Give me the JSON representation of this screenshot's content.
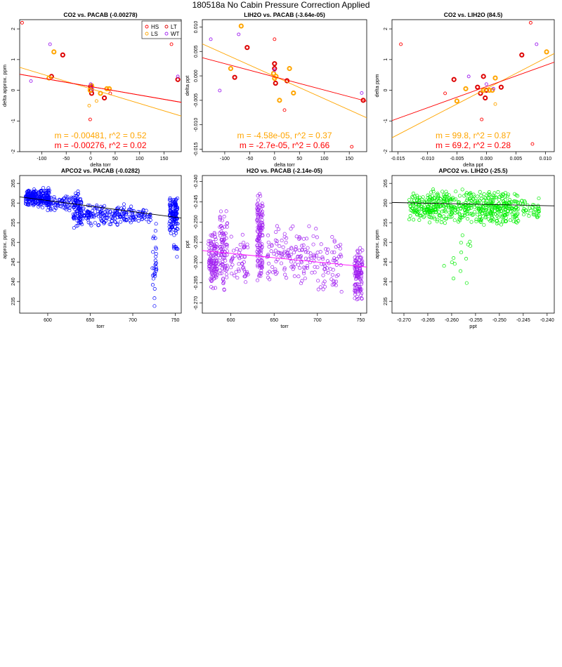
{
  "figure": {
    "title": "180518a   No Cabin Pressure Correction Applied"
  },
  "colors": {
    "HS": "#ff0000",
    "LS": "#ffa500",
    "LT": "#dd0000",
    "WT": "#a020f0",
    "fit_orange": "#ffa500",
    "fit_red": "#ff0000",
    "apco2_blue": "#0000ff",
    "h2o_purple": "#a020f0",
    "apco2_green": "#00ee00",
    "fit_black": "#000000"
  },
  "legend": {
    "entries": [
      {
        "label": "HS",
        "color": "#ff0000"
      },
      {
        "label": "LT",
        "color": "#dd0000"
      },
      {
        "label": "LS",
        "color": "#ffa500"
      },
      {
        "label": "WT",
        "color": "#a020f0"
      }
    ]
  },
  "chart_data": [
    {
      "id": "co2-vs-pacab",
      "type": "scatter",
      "title": "CO2 vs. PACAB (-0.00278)",
      "xlabel": "delta torr",
      "ylabel": "delta approx. ppm",
      "xlim": [
        -145,
        185
      ],
      "ylim": [
        -2,
        2.3
      ],
      "xticks": [
        -100,
        -50,
        0,
        50,
        100,
        150
      ],
      "yticks": [
        -2,
        -1,
        0,
        1,
        2
      ],
      "legend": true,
      "annotations": [
        {
          "text": "m = -0.00481, r^2 = 0.52",
          "color": "#ffa500"
        },
        {
          "text": "m = -0.00276, r^2 = 0.02",
          "color": "#ff0000"
        }
      ],
      "fits": [
        {
          "name": "LS fit",
          "color": "#ffa500",
          "slope": -0.00481,
          "intercept": 0.05
        },
        {
          "name": "HS/LT fit",
          "color": "#ff0000",
          "slope": -0.00276,
          "intercept": 0.12
        },
        {
          "name": "overall",
          "color": "#ff0000",
          "slope": -0.00278,
          "intercept": 0.12
        }
      ],
      "series": [
        {
          "name": "HS",
          "color": "#ff0000",
          "bold": false,
          "x": [
            -140,
            165,
            -1,
            2,
            40
          ],
          "y": [
            2.2,
            1.5,
            -0.95,
            0.1,
            -0.1
          ]
        },
        {
          "name": "LT",
          "color": "#dd0000",
          "bold": true,
          "x": [
            -57,
            -80,
            178,
            0,
            1,
            2,
            28
          ],
          "y": [
            1.15,
            0.45,
            0.35,
            0.12,
            0.0,
            -0.1,
            -0.25
          ]
        },
        {
          "name": "LS",
          "color": "#ffa500",
          "bold": true,
          "x": [
            -75,
            -85,
            2,
            20,
            38,
            33,
            -1
          ],
          "y": [
            1.25,
            0.4,
            0.15,
            -0.1,
            0.05,
            0.05,
            0.0
          ]
        },
        {
          "name": "LS-light",
          "color": "#ffa500",
          "bold": false,
          "x": [
            12,
            -3
          ],
          "y": [
            -0.35,
            -0.5
          ]
        },
        {
          "name": "WT",
          "color": "#a020f0",
          "bold": false,
          "x": [
            -83,
            -122,
            178,
            0,
            3
          ],
          "y": [
            1.5,
            0.3,
            0.45,
            0.2,
            0.05
          ]
        }
      ]
    },
    {
      "id": "lih2o-vs-pacab",
      "type": "scatter",
      "title": "LIH2O vs. PACAB (-3.64e-05)",
      "xlabel": "delta torr",
      "ylabel": "delta ppt",
      "xlim": [
        -145,
        185
      ],
      "ylim": [
        -0.0155,
        0.0115
      ],
      "xticks": [
        -100,
        -50,
        0,
        50,
        100,
        150
      ],
      "yticks": [
        -0.015,
        -0.01,
        -0.005,
        0,
        0.005,
        0.01
      ],
      "ytick_labels": [
        "-0.015",
        "-0.010",
        "-0.005",
        "0.000",
        "0.005",
        "0.010"
      ],
      "legend": false,
      "annotations": [
        {
          "text": "m = -4.58e-05, r^2 = 0.37",
          "color": "#ffa500"
        },
        {
          "text": "m = -2.7e-05, r^2 = 0.66",
          "color": "#ff0000"
        }
      ],
      "fits": [
        {
          "name": "LS fit",
          "color": "#ffa500",
          "slope": -4.58e-05,
          "intercept": -0.0001
        },
        {
          "name": "HS/LT fit",
          "color": "#ff0000",
          "slope": -2.7e-05,
          "intercept": -0.0002
        }
      ],
      "series": [
        {
          "name": "HS",
          "color": "#ff0000",
          "bold": false,
          "x": [
            0,
            155,
            20
          ],
          "y": [
            0.0075,
            -0.0145,
            -0.007
          ]
        },
        {
          "name": "LT",
          "color": "#dd0000",
          "bold": true,
          "x": [
            -55,
            -80,
            0,
            0,
            2,
            178,
            25
          ],
          "y": [
            0.0058,
            -0.0003,
            0.0025,
            0.0015,
            -0.0015,
            -0.005,
            -0.001
          ]
        },
        {
          "name": "LS",
          "color": "#ffa500",
          "bold": true,
          "x": [
            -67,
            -88,
            -2,
            0,
            3,
            30,
            10,
            38
          ],
          "y": [
            0.0102,
            0.0015,
            0.0005,
            -0.0005,
            -0.0001,
            0.0015,
            -0.005,
            -0.0035
          ]
        },
        {
          "name": "WT",
          "color": "#a020f0",
          "bold": false,
          "x": [
            -128,
            -72,
            -110,
            175,
            0
          ],
          "y": [
            0.0075,
            0.0085,
            -0.003,
            -0.0035,
            0.0012
          ]
        }
      ]
    },
    {
      "id": "co2-vs-lih2o",
      "type": "scatter",
      "title": "CO2 vs. LIH2O (84.5)",
      "xlabel": "delta ppt",
      "ylabel": "delta ppm",
      "xlim": [
        -0.016,
        0.0115
      ],
      "ylim": [
        -2,
        2.3
      ],
      "xticks": [
        -0.015,
        -0.01,
        -0.005,
        0,
        0.005,
        0.01
      ],
      "xtick_labels": [
        "-0.015",
        "-0.010",
        "-0.005",
        "0.000",
        "0.005",
        "0.010"
      ],
      "yticks": [
        -2,
        -1,
        0,
        1,
        2
      ],
      "legend": false,
      "annotations": [
        {
          "text": "m = 99.8, r^2 = 0.87",
          "color": "#ffa500"
        },
        {
          "text": "m = 69.2, r^2 = 0.28",
          "color": "#ff0000"
        }
      ],
      "fits": [
        {
          "name": "LS fit",
          "color": "#ffa500",
          "slope": 99.8,
          "intercept": 0.05
        },
        {
          "name": "HS/LT fit",
          "color": "#ff0000",
          "slope": 69.2,
          "intercept": 0.12
        }
      ],
      "series": [
        {
          "name": "HS",
          "color": "#ff0000",
          "bold": false,
          "x": [
            -0.0145,
            0.0075,
            0.0078,
            -0.007,
            -0.0008
          ],
          "y": [
            1.5,
            2.2,
            -1.75,
            -0.1,
            -0.95
          ]
        },
        {
          "name": "LT",
          "color": "#dd0000",
          "bold": true,
          "x": [
            0.006,
            -0.0055,
            0.0025,
            -0.0015,
            -0.001,
            -0.0005,
            0.0,
            -0.0002
          ],
          "y": [
            1.15,
            0.35,
            0.1,
            0.1,
            -0.1,
            0.45,
            0.0,
            -0.25
          ]
        },
        {
          "name": "LS",
          "color": "#ffa500",
          "bold": true,
          "x": [
            0.0102,
            -0.0035,
            0.0015,
            -0.005,
            0.0005,
            -0.0005,
            0.001
          ],
          "y": [
            1.25,
            0.05,
            0.4,
            -0.35,
            0.0,
            0.0,
            0.0
          ]
        },
        {
          "name": "LS-light",
          "color": "#ffa500",
          "bold": false,
          "x": [
            0.0015
          ],
          "y": [
            -0.45
          ]
        },
        {
          "name": "WT",
          "color": "#a020f0",
          "bold": false,
          "x": [
            0.0085,
            -0.003,
            0.0,
            0.0012
          ],
          "y": [
            1.5,
            0.45,
            0.2,
            0.05
          ]
        }
      ]
    },
    {
      "id": "apco2-vs-pacab",
      "type": "scatter",
      "title": "APCO2 vs. PACAB (-0.0282)",
      "xlabel": "torr",
      "ylabel": "approx. ppm",
      "xlim": [
        567,
        757
      ],
      "ylim": [
        232,
        267
      ],
      "xticks": [
        600,
        650,
        700,
        750
      ],
      "yticks": [
        235,
        240,
        245,
        250,
        255,
        260,
        265
      ],
      "point_color": "#0000ff",
      "fit": {
        "slope": -0.0282,
        "intercept": 277.55,
        "color": "#000000"
      },
      "clusters": [
        {
          "x": [
            574,
            586
          ],
          "y": [
            259,
            264
          ],
          "n": 130
        },
        {
          "x": [
            588,
            602
          ],
          "y": [
            258.5,
            264
          ],
          "n": 120
        },
        {
          "x": [
            600,
            630
          ],
          "y": [
            258,
            262
          ],
          "n": 70
        },
        {
          "x": [
            630,
            640
          ],
          "y": [
            253,
            264
          ],
          "n": 90
        },
        {
          "x": [
            640,
            700
          ],
          "y": [
            254,
            260
          ],
          "n": 160
        },
        {
          "x": [
            700,
            722
          ],
          "y": [
            255,
            258.5
          ],
          "n": 40
        },
        {
          "x": [
            723,
            728
          ],
          "y": [
            233,
            258
          ],
          "n": 30
        },
        {
          "x": [
            743,
            753
          ],
          "y": [
            252,
            262
          ],
          "n": 130
        },
        {
          "x": [
            748,
            753
          ],
          "y": [
            245,
            252
          ],
          "n": 10
        }
      ]
    },
    {
      "id": "h2o-vs-pacab",
      "type": "scatter",
      "title": "H2O vs. PACAB (-2.14e-05)",
      "xlabel": "torr",
      "ylabel": "ppt",
      "xlim": [
        567,
        757
      ],
      "ylim": [
        -0.2725,
        -0.2385
      ],
      "xticks": [
        600,
        650,
        700,
        750
      ],
      "yticks": [
        -0.27,
        -0.265,
        -0.26,
        -0.255,
        -0.25,
        -0.245,
        -0.24
      ],
      "ytick_labels": [
        "-0.270",
        "-0.265",
        "-0.260",
        "-0.255",
        "-0.250",
        "-0.245",
        "-0.240"
      ],
      "point_color": "#a020f0",
      "fit": {
        "slope": -2.14e-05,
        "intercept": -0.2449,
        "color": "#ff00ff"
      },
      "clusters": [
        {
          "x": [
            574,
            584
          ],
          "y": [
            -0.268,
            -0.252
          ],
          "n": 110
        },
        {
          "x": [
            586,
            596
          ],
          "y": [
            -0.268,
            -0.246
          ],
          "n": 90
        },
        {
          "x": [
            600,
            620
          ],
          "y": [
            -0.266,
            -0.252
          ],
          "n": 50
        },
        {
          "x": [
            630,
            637
          ],
          "y": [
            -0.266,
            -0.2415
          ],
          "n": 130
        },
        {
          "x": [
            640,
            700
          ],
          "y": [
            -0.266,
            -0.25
          ],
          "n": 130
        },
        {
          "x": [
            700,
            728
          ],
          "y": [
            -0.268,
            -0.253
          ],
          "n": 60
        },
        {
          "x": [
            743,
            752
          ],
          "y": [
            -0.2705,
            -0.255
          ],
          "n": 110
        }
      ]
    },
    {
      "id": "apco2-vs-lih2o",
      "type": "scatter",
      "title": "APCO2 vs. LIH2O (-25.5)",
      "xlabel": "ppt",
      "ylabel": "approx. ppm",
      "xlim": [
        -0.2725,
        -0.2385
      ],
      "ylim": [
        232,
        267
      ],
      "xticks": [
        -0.27,
        -0.265,
        -0.26,
        -0.255,
        -0.25,
        -0.245,
        -0.24
      ],
      "xtick_labels": [
        "-0.270",
        "-0.265",
        "-0.260",
        "-0.255",
        "-0.250",
        "-0.245",
        "-0.240"
      ],
      "yticks": [
        235,
        240,
        245,
        250,
        255,
        260,
        265
      ],
      "point_color": "#00ee00",
      "fit": {
        "slope": -25.5,
        "intercept": 253.2,
        "color": "#000000"
      },
      "clusters": [
        {
          "x": [
            -0.269,
            -0.265
          ],
          "y": [
            255,
            263
          ],
          "n": 80
        },
        {
          "x": [
            -0.265,
            -0.252
          ],
          "y": [
            254,
            264
          ],
          "n": 300
        },
        {
          "x": [
            -0.252,
            -0.246
          ],
          "y": [
            254,
            263
          ],
          "n": 160
        },
        {
          "x": [
            -0.246,
            -0.2415
          ],
          "y": [
            256,
            262
          ],
          "n": 40
        },
        {
          "x": [
            -0.262,
            -0.256
          ],
          "y": [
            237,
            253
          ],
          "n": 14
        }
      ]
    }
  ]
}
